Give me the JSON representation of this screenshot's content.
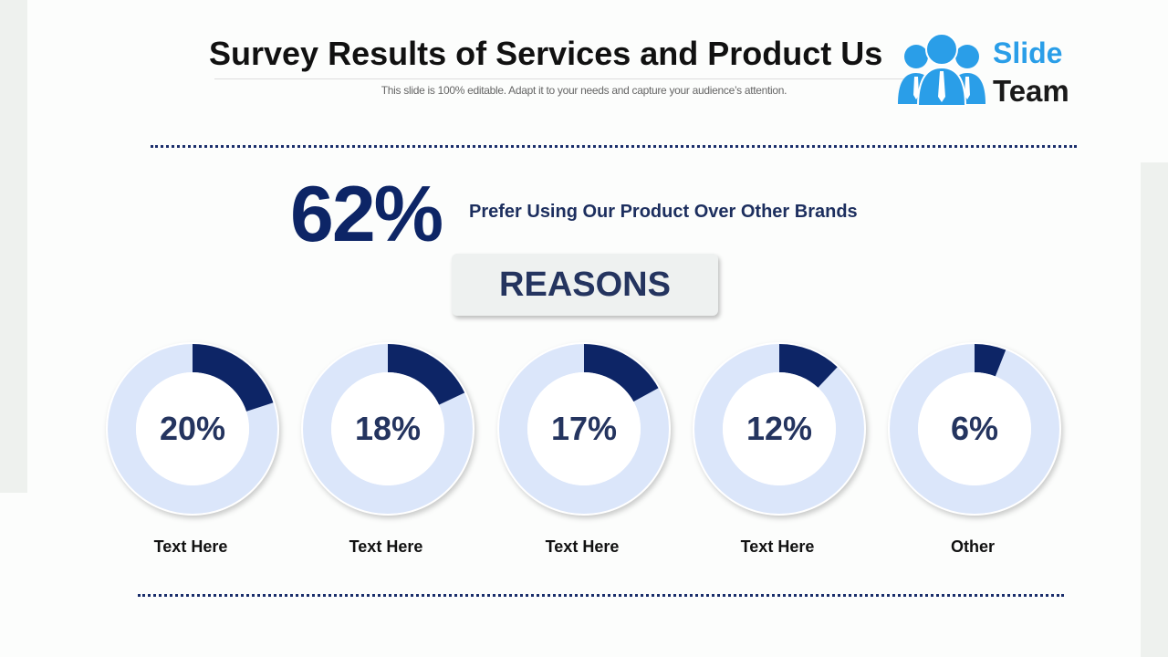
{
  "header": {
    "title": "Survey Results of Services and Product Us",
    "subtitle": "This slide is 100% editable. Adapt it to your needs and capture your audience’s attention."
  },
  "logo": {
    "line1": "Slide",
    "line2": "Team"
  },
  "headline": {
    "value": "62%",
    "text": "Prefer Using Our Product Over Other Brands"
  },
  "reasons_label": "REASONS",
  "colors": {
    "fill": "#0d2566",
    "track": "#dbe6fa"
  },
  "chart_data": {
    "type": "pie",
    "categories": [
      "Text Here",
      "Text Here",
      "Text Here",
      "Text Here",
      "Other"
    ],
    "values": [
      20,
      18,
      17,
      12,
      6
    ],
    "labels": [
      "20%",
      "18%",
      "17%",
      "12%",
      "6%"
    ]
  }
}
